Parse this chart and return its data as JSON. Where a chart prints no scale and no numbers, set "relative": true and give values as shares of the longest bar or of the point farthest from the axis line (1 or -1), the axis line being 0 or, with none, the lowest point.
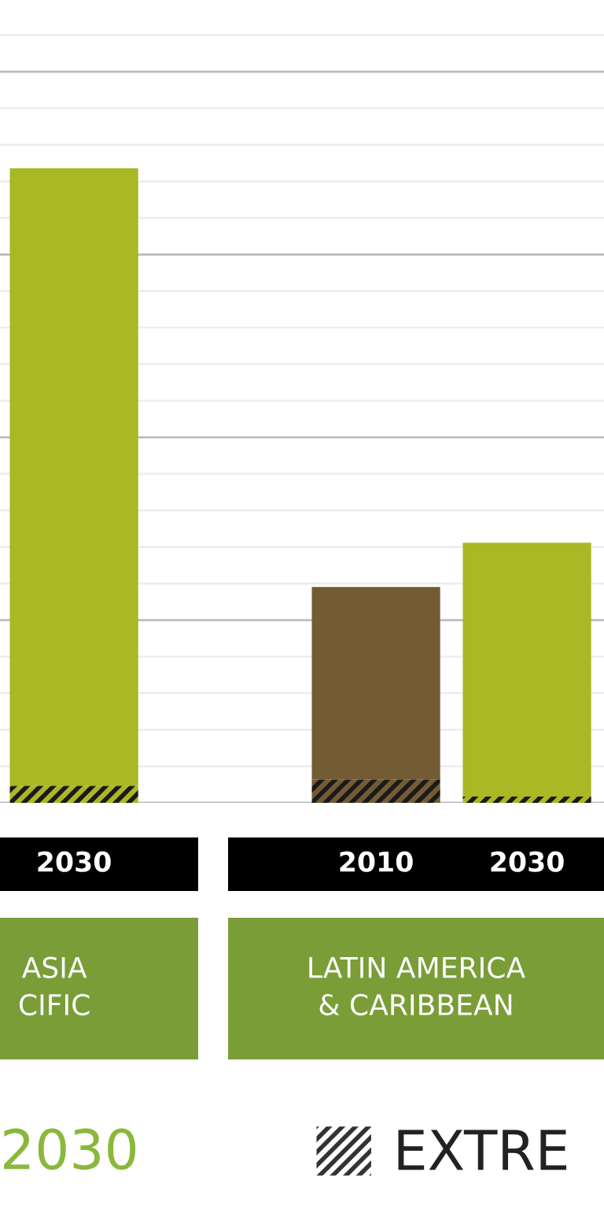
{
  "chart_data": {
    "type": "bar",
    "relative": true,
    "stacked": true,
    "grid": "y",
    "legend": "bottom",
    "categories": [
      "2030",
      null,
      "2010",
      "2030"
    ],
    "series": [
      {
        "name": "EXTRE",
        "colors": [
          "#a9b824",
          null,
          "#735b34",
          "#a9b824"
        ],
        "values": [
          0.027,
          null,
          0.037,
          0.01
        ]
      },
      {
        "colors": [
          "#a9b824",
          null,
          "#735b34",
          "#a9b824"
        ],
        "values": [
          0.973,
          null,
          0.303,
          0.4
        ]
      }
    ],
    "annotations": [
      "ASIA\nCIFIC",
      "LATIN AMERICA\n& CARIBBEAN",
      "2030"
    ]
  }
}
